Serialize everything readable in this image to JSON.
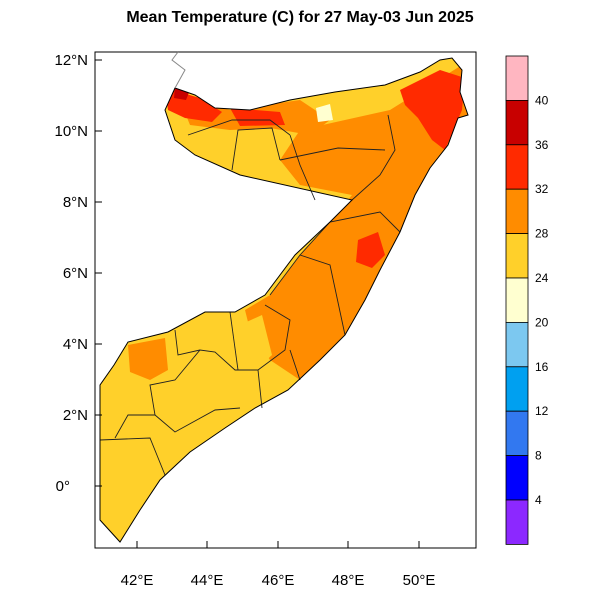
{
  "title": "Mean Temperature (C) for 27 May-03 Jun 2025",
  "map": {
    "lat_labels": [
      "12°N",
      "10°N",
      "8°N",
      "6°N",
      "4°N",
      "2°N",
      "0°"
    ],
    "lon_labels": [
      "42°E",
      "44°E",
      "46°E",
      "48°E",
      "50°E"
    ],
    "region": "Somalia"
  },
  "colorbar": {
    "labels": [
      "40",
      "36",
      "32",
      "28",
      "24",
      "20",
      "16",
      "12",
      "8",
      "4"
    ],
    "colors": [
      "#ffb6c1",
      "#c80000",
      "#ff2a00",
      "#ff8c00",
      "#ffd02a",
      "#ffffd0",
      "#7cc8f0",
      "#00a0f0",
      "#3278f0",
      "#0000ff",
      "#8c28ff"
    ]
  }
}
